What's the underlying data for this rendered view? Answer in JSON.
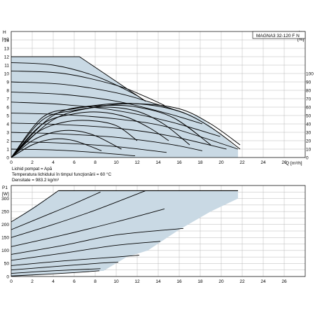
{
  "chart_data": [
    {
      "type": "line",
      "title": "MAGNA3 32-120 F N",
      "ylabel": "H",
      "yunit": "[m]",
      "xlabel": "Q",
      "xunit": "[m³/h]",
      "y2label": "eta",
      "y2unit": "[%]",
      "xlim": [
        0,
        28
      ],
      "ylim": [
        0,
        15
      ],
      "y2lim": [
        0,
        150
      ],
      "xticks": [
        0,
        2,
        4,
        6,
        8,
        10,
        12,
        14,
        16,
        18,
        20,
        22,
        24,
        26
      ],
      "yticks": [
        0,
        1,
        2,
        3,
        4,
        5,
        6,
        7,
        8,
        9,
        10,
        11,
        12,
        13,
        14
      ],
      "y2ticks": [
        0,
        10,
        20,
        30,
        40,
        50,
        60,
        70,
        80,
        90,
        100
      ],
      "grid": true,
      "operating_area": [
        [
          0,
          12
        ],
        [
          6.5,
          12
        ],
        [
          12.8,
          6.7
        ],
        [
          15,
          6
        ],
        [
          18,
          4.8
        ],
        [
          21.6,
          1
        ],
        [
          21.6,
          0
        ],
        [
          0,
          0
        ]
      ],
      "head_curves": [
        {
          "x": [
            0,
            4,
            8,
            11.5,
            12.8
          ],
          "y": [
            11.3,
            11.0,
            9.7,
            7.7,
            6.7
          ]
        },
        {
          "x": [
            0,
            5,
            10,
            12.5,
            14.6
          ],
          "y": [
            10.3,
            10.0,
            8.6,
            7.4,
            6.2
          ]
        },
        {
          "x": [
            0,
            5,
            10,
            14,
            16.5
          ],
          "y": [
            9.0,
            8.7,
            7.7,
            6.3,
            5.3
          ]
        },
        {
          "x": [
            0,
            5,
            10,
            15,
            18.2
          ],
          "y": [
            7.8,
            7.5,
            6.7,
            5.2,
            4.0
          ]
        },
        {
          "x": [
            0,
            5,
            10,
            15,
            19.9
          ],
          "y": [
            6.6,
            6.3,
            5.6,
            4.3,
            2.5
          ]
        },
        {
          "x": [
            0,
            5,
            10,
            15,
            21.6
          ],
          "y": [
            5.3,
            5.1,
            4.6,
            3.6,
            1.0
          ]
        },
        {
          "x": [
            0,
            5,
            10,
            15,
            20.5
          ],
          "y": [
            4.1,
            3.9,
            3.5,
            2.6,
            1.0
          ]
        },
        {
          "x": [
            0,
            5,
            10,
            15,
            18.2
          ],
          "y": [
            3.0,
            2.8,
            2.4,
            1.6,
            0.8
          ]
        },
        {
          "x": [
            0,
            5,
            10,
            14.8
          ],
          "y": [
            1.9,
            1.7,
            1.3,
            0.6
          ]
        },
        {
          "x": [
            0,
            4,
            8,
            11.8
          ],
          "y": [
            1.0,
            0.9,
            0.6,
            0.2
          ]
        }
      ],
      "efficiency_curves": [
        {
          "x": [
            0,
            4,
            8,
            12,
            16,
            19,
            21.8
          ],
          "y": [
            0,
            45,
            60,
            64,
            58,
            40,
            15
          ]
        },
        {
          "x": [
            0,
            4,
            8,
            12,
            16,
            19,
            21.8
          ],
          "y": [
            0,
            50,
            62,
            64,
            55,
            36,
            10
          ]
        },
        {
          "x": [
            0,
            3,
            6,
            9,
            12,
            15.5,
            19
          ],
          "y": [
            0,
            48,
            58,
            62,
            60,
            47,
            15
          ]
        },
        {
          "x": [
            0,
            3,
            6,
            9,
            12,
            14.5,
            17
          ],
          "y": [
            0,
            45,
            56,
            60,
            55,
            40,
            15
          ]
        },
        {
          "x": [
            0,
            3,
            6,
            8.5,
            11,
            13.2,
            15
          ],
          "y": [
            0,
            40,
            52,
            54,
            48,
            35,
            20
          ]
        },
        {
          "x": [
            0,
            2.5,
            5,
            7.5,
            10,
            12
          ],
          "y": [
            0,
            30,
            42,
            44,
            38,
            20
          ]
        },
        {
          "x": [
            0,
            2,
            4,
            6,
            8,
            10.5
          ],
          "y": [
            0,
            20,
            30,
            32,
            26,
            10
          ]
        },
        {
          "x": [
            0,
            2,
            4,
            6,
            8.6
          ],
          "y": [
            0,
            15,
            22,
            20,
            8
          ]
        }
      ],
      "annotations": [
        "Lichid pompat = Apă",
        "Temperatura lichidului în timpul funcţionării = 60 °C",
        "Densitate = 983.2 kg/m³"
      ]
    },
    {
      "type": "line",
      "ylabel": "P1",
      "yunit": "[W]",
      "xlim": [
        0,
        28
      ],
      "ylim": [
        0,
        350
      ],
      "yticks": [
        0,
        50,
        100,
        150,
        200,
        250,
        300
      ],
      "grid": true,
      "operating_area": [
        [
          0,
          210
        ],
        [
          4.5,
          330
        ],
        [
          21.6,
          330
        ],
        [
          21.6,
          300
        ],
        [
          19,
          250
        ],
        [
          16,
          180
        ],
        [
          13,
          100
        ],
        [
          11,
          75
        ],
        [
          8.8,
          22
        ],
        [
          0,
          0
        ]
      ],
      "power_curves": [
        {
          "x": [
            0,
            2,
            4.5
          ],
          "y": [
            210,
            260,
            330
          ]
        },
        {
          "x": [
            0,
            3,
            6,
            8.5
          ],
          "y": [
            180,
            230,
            280,
            325
          ]
        },
        {
          "x": [
            0,
            4,
            8,
            12.8
          ],
          "y": [
            150,
            200,
            255,
            330
          ]
        },
        {
          "x": [
            0,
            5,
            10,
            14.6
          ],
          "y": [
            115,
            160,
            210,
            260
          ]
        },
        {
          "x": [
            0,
            5,
            10,
            16.4
          ],
          "y": [
            85,
            120,
            160,
            185
          ]
        },
        {
          "x": [
            0,
            5,
            10,
            14.2
          ],
          "y": [
            62,
            90,
            120,
            135
          ]
        },
        {
          "x": [
            0,
            5,
            10,
            12.2
          ],
          "y": [
            42,
            60,
            75,
            82
          ]
        },
        {
          "x": [
            0,
            4,
            8,
            10.2
          ],
          "y": [
            25,
            38,
            50,
            55
          ]
        },
        {
          "x": [
            0,
            4,
            8.5
          ],
          "y": [
            12,
            22,
            30
          ]
        },
        {
          "x": [
            0,
            3,
            6,
            8.4
          ],
          "y": [
            2,
            8,
            15,
            22
          ]
        }
      ],
      "max_power": 330
    }
  ]
}
